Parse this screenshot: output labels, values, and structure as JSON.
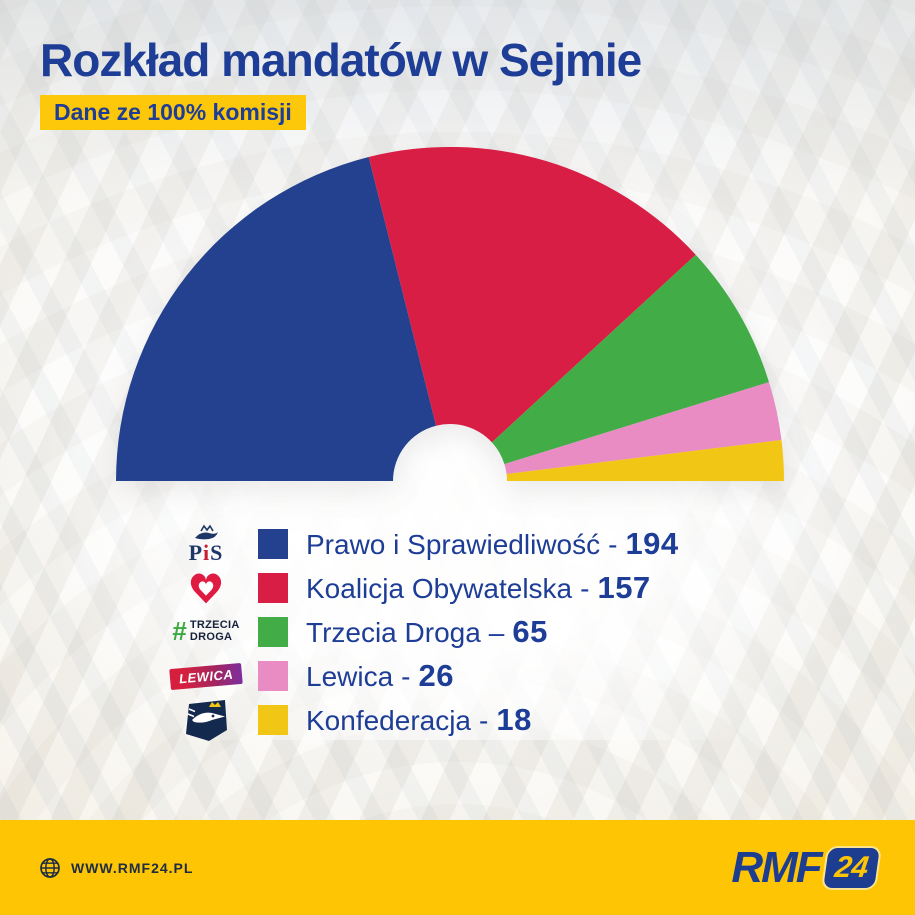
{
  "page": {
    "title": "Rozkład mandatów w Sejmie",
    "badge": "Dane ze 100% komisji"
  },
  "chart_data": {
    "type": "pie",
    "variant": "hemicycle-half-donut",
    "title": "Rozkład mandatów w Sejmie",
    "subtitle": "Dane ze 100% komisji",
    "total_seats": 460,
    "categories": [
      "Prawo i Sprawiedliwość",
      "Koalicja Obywatelska",
      "Trzecia Droga",
      "Lewica",
      "Konfederacja"
    ],
    "values": [
      194,
      157,
      65,
      26,
      18
    ],
    "colors": [
      "#24418f",
      "#d81e45",
      "#42ac47",
      "#e88cc3",
      "#f2c614"
    ],
    "start_angle_deg": 180,
    "end_angle_deg": 0,
    "legend_position": "bottom"
  },
  "legend": {
    "items": [
      {
        "label": "Prawo i Sprawiedliwość",
        "separator": "-",
        "seats": "194",
        "color": "#24418f"
      },
      {
        "label": "Koalicja Obywatelska",
        "separator": "-",
        "seats": "157",
        "color": "#d81e45"
      },
      {
        "label": "Trzecia Droga",
        "separator": "–",
        "seats": "65",
        "color": "#42ac47"
      },
      {
        "label": "Lewica",
        "separator": "-",
        "seats": "26",
        "color": "#e88cc3"
      },
      {
        "label": "Konfederacja",
        "separator": "-",
        "seats": "18",
        "color": "#f2c614"
      }
    ]
  },
  "logos": {
    "pis_p": "P",
    "pis_i": "i",
    "pis_s": "S",
    "trzecia_hash": "#",
    "trzecia_line1": "TRZECIA",
    "trzecia_line2": "DROGA",
    "lewica_text": "LEWICA"
  },
  "footer": {
    "website": "WWW.RMF24.PL",
    "brand": "RMF",
    "brand_suffix": "24",
    "bg_color": "#fdc504"
  },
  "colors": {
    "navy": "#1d3d96",
    "badge_bg": "#fdc70a"
  }
}
